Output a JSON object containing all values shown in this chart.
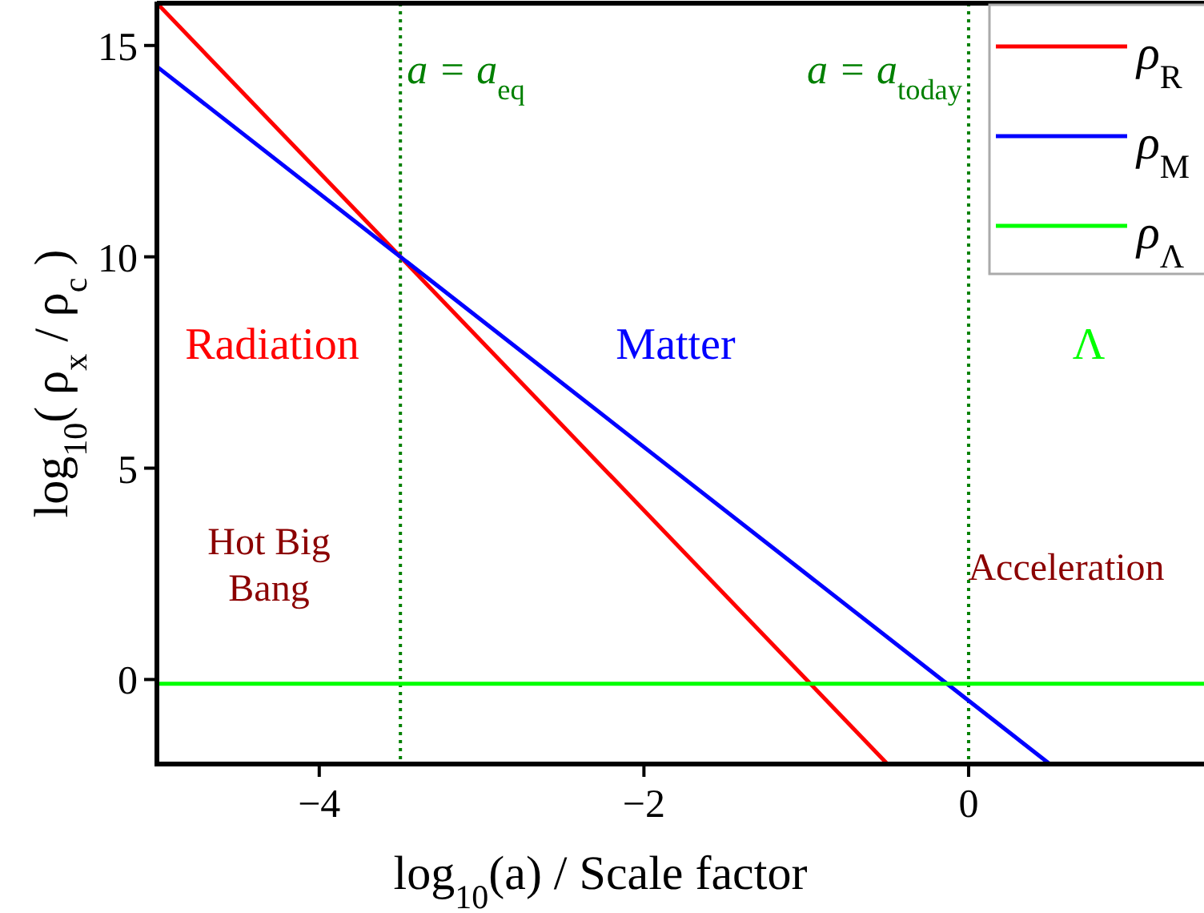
{
  "chart_data": {
    "type": "line",
    "xlabel": "log$_{10}$(a) / Scale factor",
    "ylabel": "log$_{10}$( ρ$_{x}$ / ρ$_{c}$ )",
    "xlim": [
      -5,
      1.45
    ],
    "ylim": [
      -2,
      16
    ],
    "xticks": [
      -4,
      -2,
      0
    ],
    "yticks": [
      0,
      5,
      10,
      15
    ],
    "legend": "top right",
    "grid": false,
    "marker": "none",
    "line_style": "solid",
    "series": [
      {
        "name": "ρ$_{R}$",
        "color": "#ff0000",
        "x": [
          -5,
          -0.5
        ],
        "values": [
          16,
          -2
        ]
      },
      {
        "name": "ρ$_{M}$",
        "color": "#0000ff",
        "x": [
          -5,
          0.5
        ],
        "values": [
          14.5,
          -2
        ]
      },
      {
        "name": "ρ$_{Λ}$",
        "color": "#00ff00",
        "x": [
          -5,
          1.45
        ],
        "values": [
          -0.1,
          -0.1
        ]
      }
    ],
    "ref_lines": [
      {
        "axis": "x",
        "value": -3.5,
        "label": "a = a$_{eq}$",
        "color": "#008000",
        "line_style": "dotted"
      },
      {
        "axis": "x",
        "value": 0,
        "label": "a = a$_{today}$",
        "color": "#008000",
        "line_style": "dotted"
      }
    ],
    "annotations": [
      "Radiation",
      "Matter",
      "Λ",
      "Hot Big Bang",
      "Acceleration"
    ]
  }
}
